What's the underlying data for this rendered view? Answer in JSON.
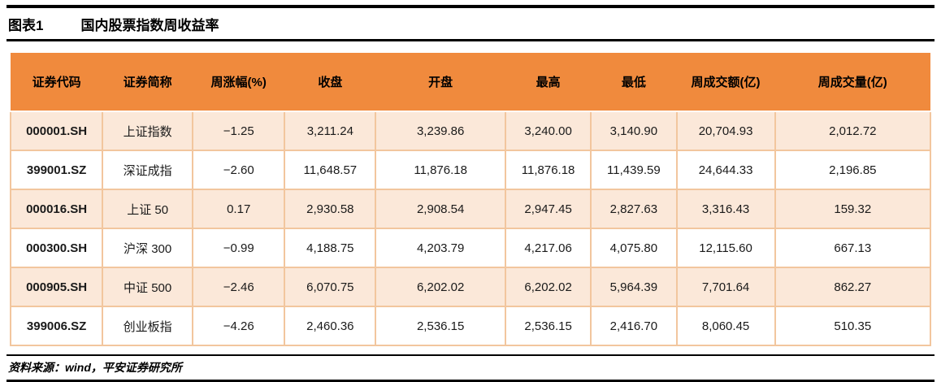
{
  "title": {
    "chart_label": "图表1",
    "text": "国内股票指数周收益率"
  },
  "table": {
    "headers": [
      "证券代码",
      "证券简称",
      "周涨幅(%)",
      "收盘",
      "开盘",
      "最高",
      "最低",
      "周成交额(亿)",
      "周成交量(亿)"
    ],
    "rows": [
      [
        "000001.SH",
        "上证指数",
        "−1.25",
        "3,211.24",
        "3,239.86",
        "3,240.00",
        "3,140.90",
        "20,704.93",
        "2,012.72"
      ],
      [
        "399001.SZ",
        "深证成指",
        "−2.60",
        "11,648.57",
        "11,876.18",
        "11,876.18",
        "11,439.59",
        "24,644.33",
        "2,196.85"
      ],
      [
        "000016.SH",
        "上证 50",
        "0.17",
        "2,930.58",
        "2,908.54",
        "2,947.45",
        "2,827.63",
        "3,316.43",
        "159.32"
      ],
      [
        "000300.SH",
        "沪深 300",
        "−0.99",
        "4,188.75",
        "4,203.79",
        "4,217.06",
        "4,075.80",
        "12,115.60",
        "667.13"
      ],
      [
        "000905.SH",
        "中证 500",
        "−2.46",
        "6,070.75",
        "6,202.02",
        "6,202.02",
        "5,964.39",
        "7,701.64",
        "862.27"
      ],
      [
        "399006.SZ",
        "创业板指",
        "−4.26",
        "2,460.36",
        "2,536.15",
        "2,536.15",
        "2,416.70",
        "8,060.45",
        "510.35"
      ]
    ]
  },
  "footer": {
    "source": "资料来源：wind，平安证券研究所"
  },
  "colors": {
    "header_bg": "#F08A3D",
    "row_alt_bg": "#FBE8D9",
    "grid_line": "#F2C69E",
    "rule_line": "#000000"
  }
}
